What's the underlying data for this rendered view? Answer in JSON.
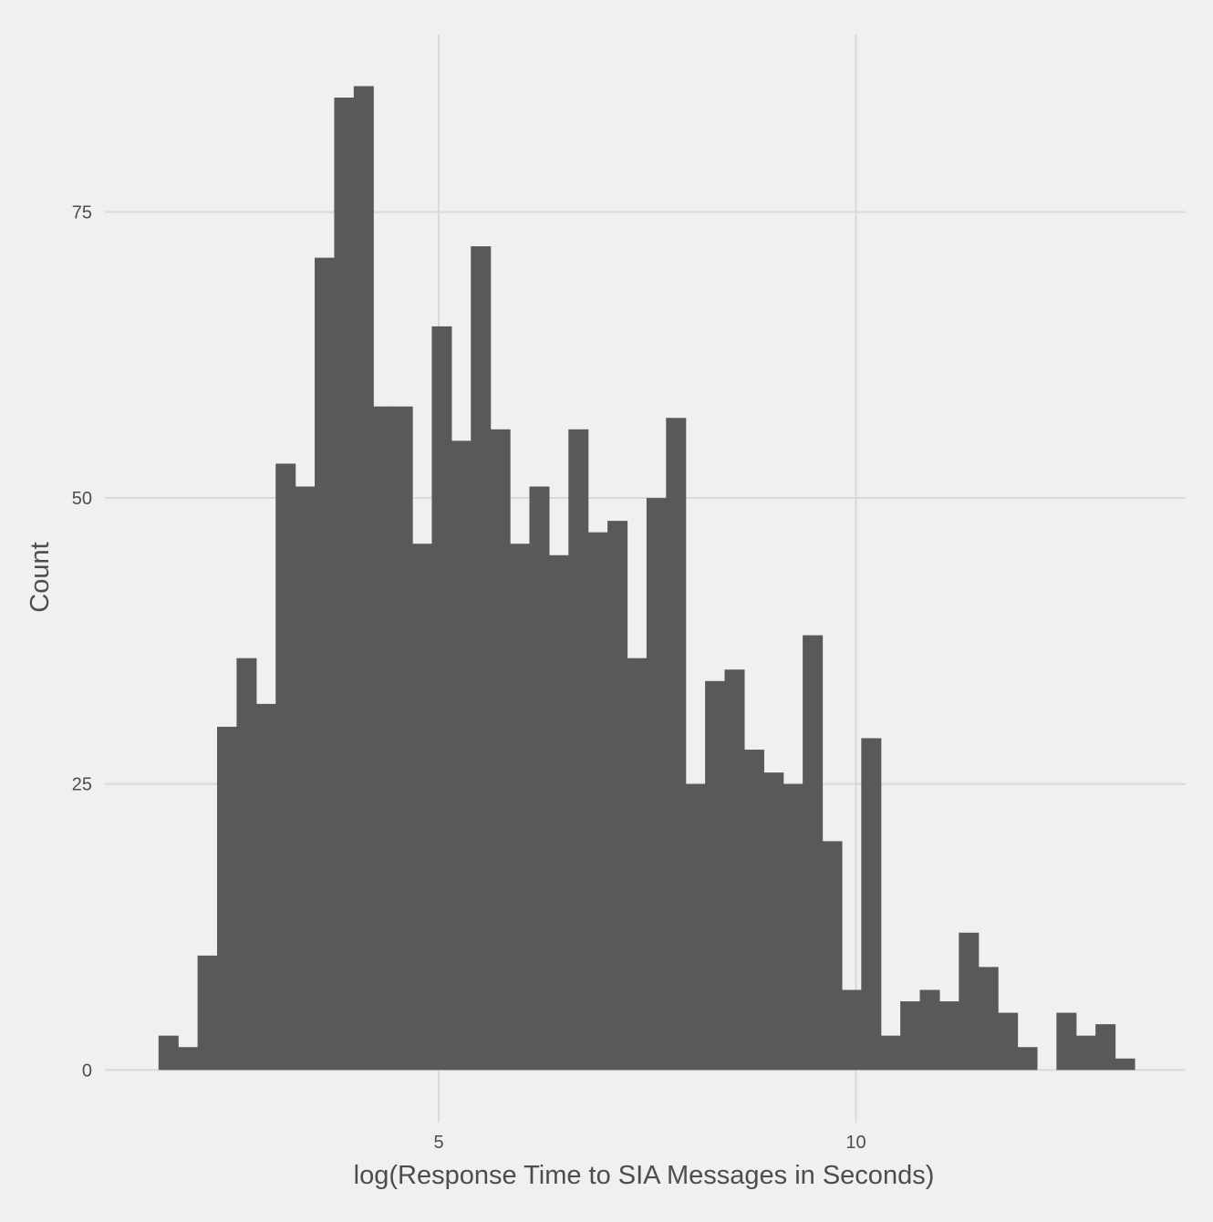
{
  "chart_data": {
    "type": "bar",
    "subtype": "histogram",
    "title": "",
    "xlabel": "log(Response Time to SIA Messages in Seconds)",
    "ylabel": "Count",
    "xlim": [
      1.0,
      13.95
    ],
    "ylim": [
      -4.6,
      90.5
    ],
    "x_ticks": [
      5,
      10
    ],
    "y_ticks": [
      0,
      25,
      50,
      75
    ],
    "grid": true,
    "bin_width": 0.2339,
    "bin_start": 1.6427,
    "values": [
      3,
      2,
      10,
      30,
      36,
      32,
      53,
      51,
      71,
      85,
      86,
      58,
      58,
      46,
      65,
      55,
      72,
      56,
      46,
      51,
      45,
      56,
      47,
      48,
      36,
      50,
      57,
      25,
      34,
      35,
      28,
      26,
      25,
      38,
      20,
      7,
      29,
      3,
      6,
      7,
      6,
      12,
      9,
      5,
      2,
      0,
      5,
      3,
      4,
      1
    ],
    "bar_color": "#595959",
    "grid_color": "#d9d9d9",
    "background": "#f0f0f0"
  }
}
